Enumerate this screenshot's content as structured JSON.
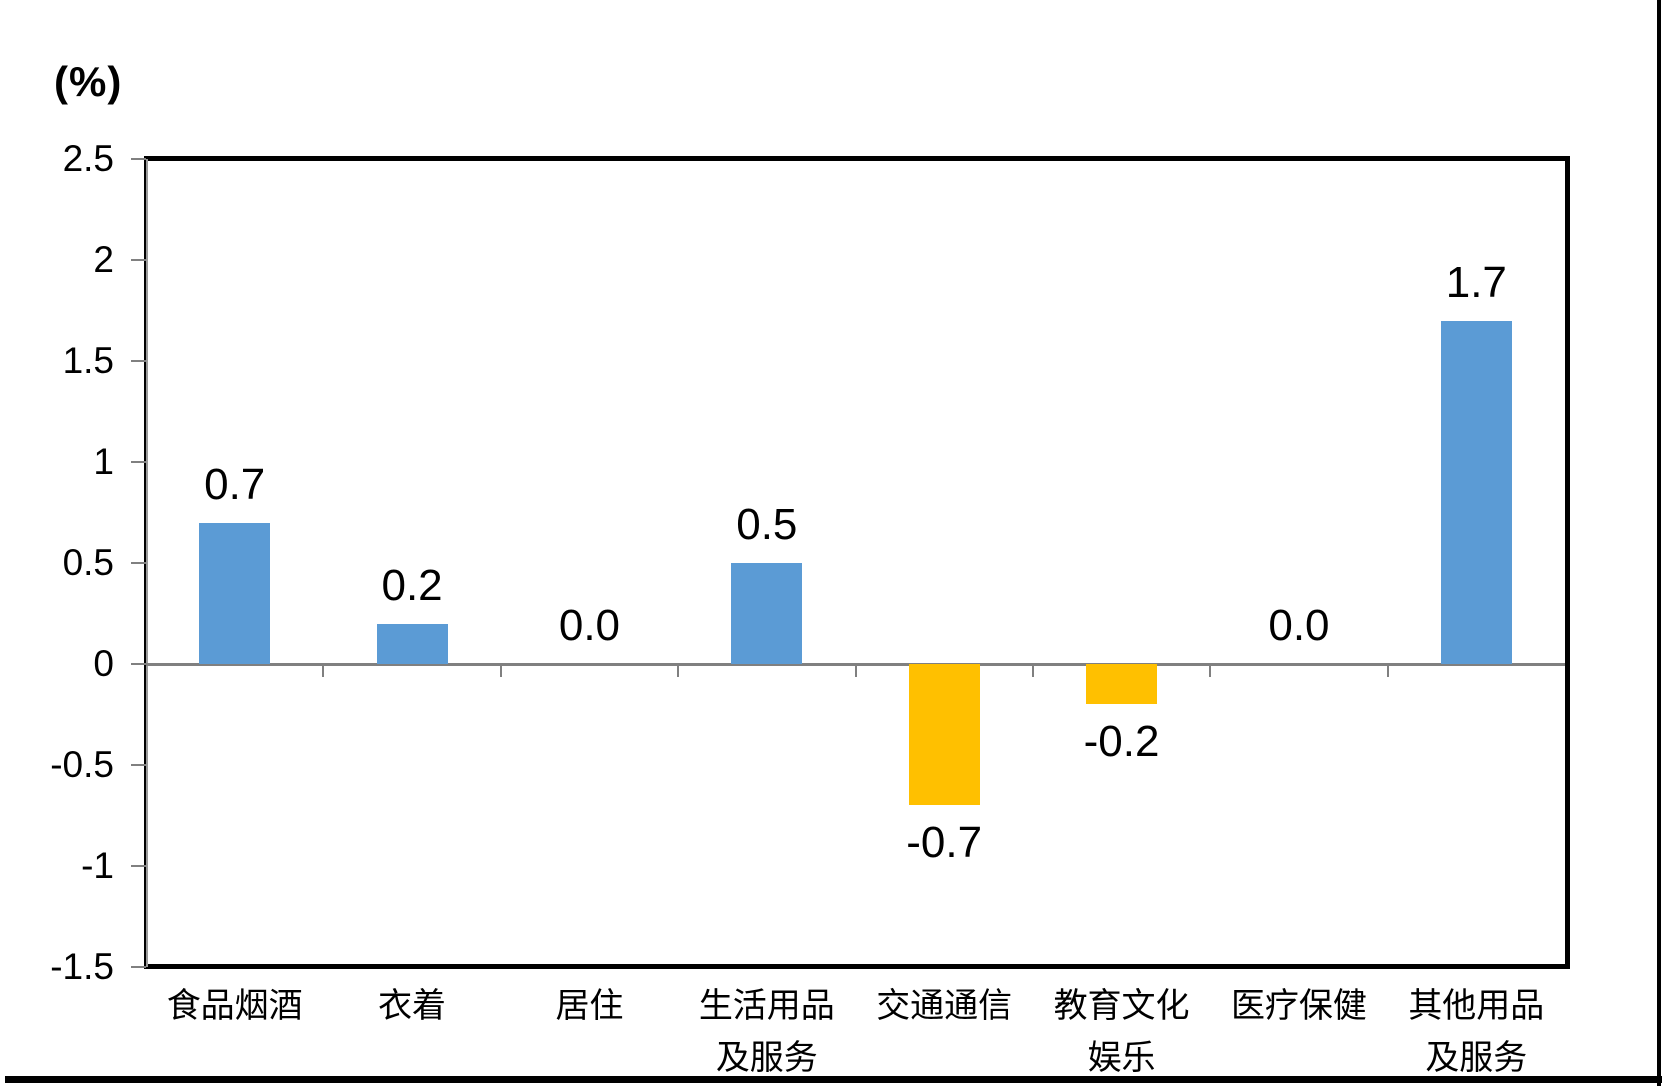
{
  "chart_data": {
    "type": "bar",
    "title": "",
    "ylabel": "(%)",
    "xlabel": "",
    "categories": [
      "食品烟酒",
      "衣着",
      "居住",
      "生活用品及服务",
      "交通通信",
      "教育文化娱乐",
      "医疗保健",
      "其他用品及服务"
    ],
    "categories_display": [
      [
        "食品烟酒"
      ],
      [
        "衣着"
      ],
      [
        "居住"
      ],
      [
        "生活用品",
        "及服务"
      ],
      [
        "交通通信"
      ],
      [
        "教育文化",
        "娱乐"
      ],
      [
        "医疗保健"
      ],
      [
        "其他用品",
        "及服务"
      ]
    ],
    "values": [
      0.7,
      0.2,
      0.0,
      0.5,
      -0.7,
      -0.2,
      0.0,
      1.7
    ],
    "value_labels": [
      "0.7",
      "0.2",
      "0.0",
      "0.5",
      "-0.7",
      "-0.2",
      "0.0",
      "1.7"
    ],
    "y_ticks": [
      {
        "label": "2.5",
        "value": 2.5
      },
      {
        "label": "2",
        "value": 2.0
      },
      {
        "label": "1.5",
        "value": 1.5
      },
      {
        "label": "1",
        "value": 1.0
      },
      {
        "label": "0.5",
        "value": 0.5
      },
      {
        "label": "0",
        "value": 0.0
      },
      {
        "label": "-0.5",
        "value": -0.5
      },
      {
        "label": "-1",
        "value": -1.0
      },
      {
        "label": "-1.5",
        "value": -1.5
      }
    ],
    "ylim": [
      -1.5,
      2.5
    ],
    "grid": "zero-line-only",
    "legend": "none",
    "colors": {
      "positive_bar": "#5B9BD5",
      "negative_bar": "#FFC000",
      "axis_gray": "#808080",
      "frame_black": "#000000",
      "text": "#000000"
    }
  }
}
